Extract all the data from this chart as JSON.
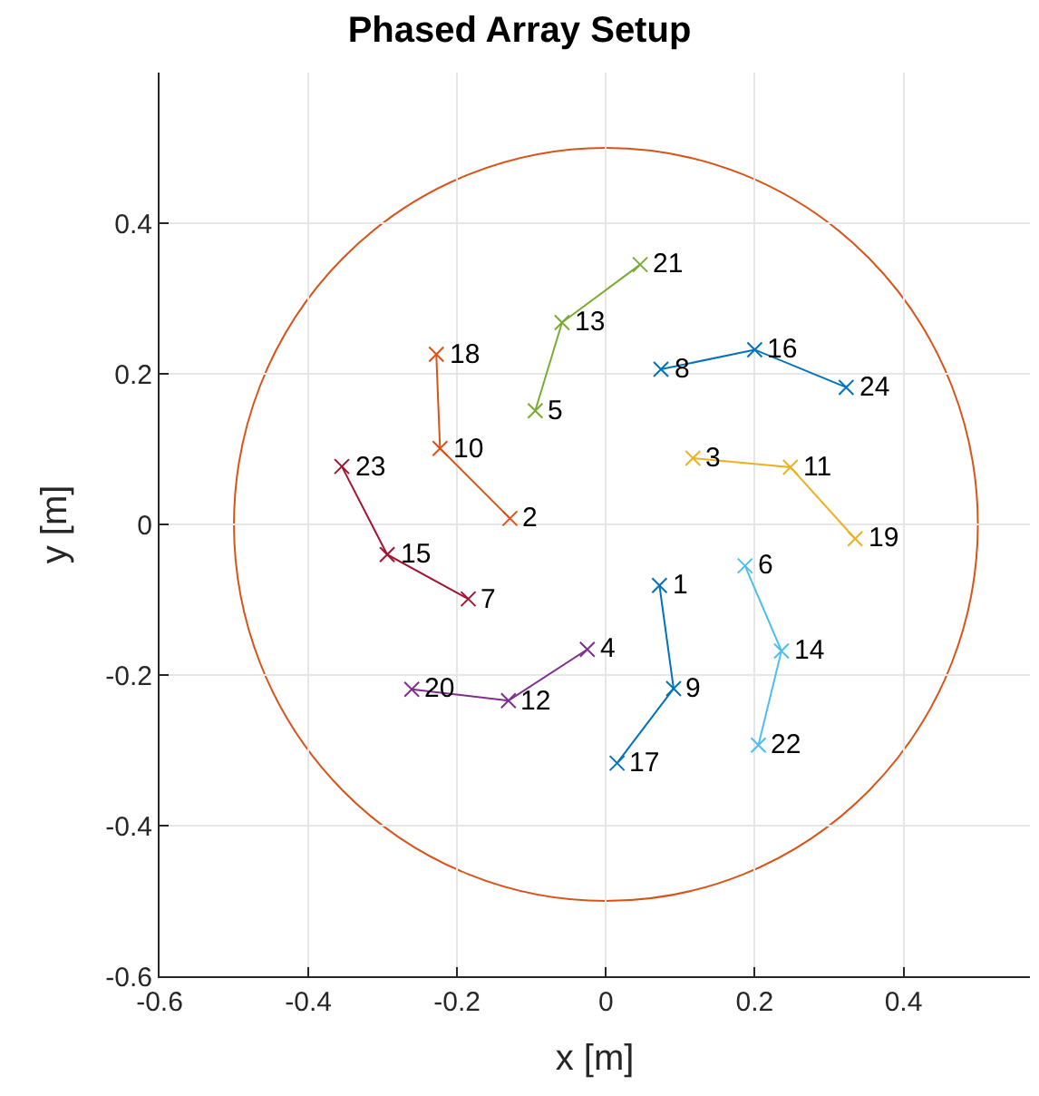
{
  "chart_data": {
    "type": "line",
    "title": "Phased Array Setup",
    "xlabel": "x [m]",
    "ylabel": "y [m]",
    "xlim": [
      -0.6,
      0.57
    ],
    "xticks": [
      -0.6,
      -0.4,
      -0.2,
      0,
      0.2,
      0.4
    ],
    "ylim": [
      -0.6,
      0.6
    ],
    "yticks": [
      -0.6,
      -0.4,
      -0.2,
      0,
      0.2,
      0.4
    ],
    "grid": true,
    "marker": "cross",
    "line_style": "solid",
    "series": [
      {
        "color": "#0072bd",
        "x": [
          0.074,
          0.2,
          0.323
        ],
        "values": [
          0.206,
          0.232,
          0.182
        ]
      },
      {
        "color": "#d95319",
        "x": [
          -0.228,
          -0.223,
          -0.129
        ],
        "values": [
          0.226,
          0.101,
          0.008
        ]
      },
      {
        "color": "#edb120",
        "x": [
          0.117,
          0.248,
          0.335
        ],
        "values": [
          0.088,
          0.076,
          -0.019
        ]
      },
      {
        "color": "#7e2f8e",
        "x": [
          -0.025,
          -0.131,
          -0.261
        ],
        "values": [
          -0.166,
          -0.234,
          -0.219
        ]
      },
      {
        "color": "#77ac30",
        "x": [
          -0.095,
          -0.059,
          0.046
        ],
        "values": [
          0.151,
          0.268,
          0.345
        ]
      },
      {
        "color": "#4dbeee",
        "x": [
          0.187,
          0.236,
          0.205
        ],
        "values": [
          -0.055,
          -0.168,
          -0.293
        ]
      },
      {
        "color": "#a2142f",
        "x": [
          -0.355,
          -0.294,
          -0.185
        ],
        "values": [
          0.077,
          -0.04,
          -0.099
        ]
      },
      {
        "color": "#0072bd",
        "x": [
          0.072,
          0.091,
          0.015
        ],
        "values": [
          -0.081,
          -0.218,
          -0.317
        ]
      }
    ],
    "annotations": [
      {
        "text": "3",
        "x": 0.117,
        "y": 0.088
      },
      {
        "text": "4",
        "x": -0.025,
        "y": -0.166
      },
      {
        "text": "5",
        "x": -0.095,
        "y": 0.151
      },
      {
        "text": "6",
        "x": 0.187,
        "y": -0.055
      },
      {
        "text": "7",
        "x": -0.185,
        "y": -0.099
      },
      {
        "text": "8",
        "x": 0.074,
        "y": 0.206
      },
      {
        "text": "9",
        "x": 0.091,
        "y": -0.218
      },
      {
        "text": "10",
        "x": -0.223,
        "y": 0.101
      },
      {
        "text": "11",
        "x": 0.248,
        "y": 0.076
      },
      {
        "text": "12",
        "x": -0.131,
        "y": -0.234
      },
      {
        "text": "13",
        "x": -0.059,
        "y": 0.268
      },
      {
        "text": "14",
        "x": 0.236,
        "y": -0.168
      },
      {
        "text": "15",
        "x": -0.294,
        "y": -0.04
      },
      {
        "text": "16",
        "x": 0.2,
        "y": 0.232
      },
      {
        "text": "17",
        "x": 0.015,
        "y": -0.317
      },
      {
        "text": "18",
        "x": -0.228,
        "y": 0.226
      },
      {
        "text": "19",
        "x": 0.335,
        "y": -0.019
      },
      {
        "text": "20",
        "x": -0.261,
        "y": -0.219
      },
      {
        "text": "21",
        "x": 0.046,
        "y": 0.345
      },
      {
        "text": "22",
        "x": 0.205,
        "y": -0.293
      },
      {
        "text": "23",
        "x": -0.355,
        "y": 0.077
      },
      {
        "text": "24",
        "x": 0.323,
        "y": 0.182
      },
      {
        "text": "1",
        "x": 0.072,
        "y": -0.081
      },
      {
        "text": "2",
        "x": -0.129,
        "y": 0.008
      }
    ]
  }
}
